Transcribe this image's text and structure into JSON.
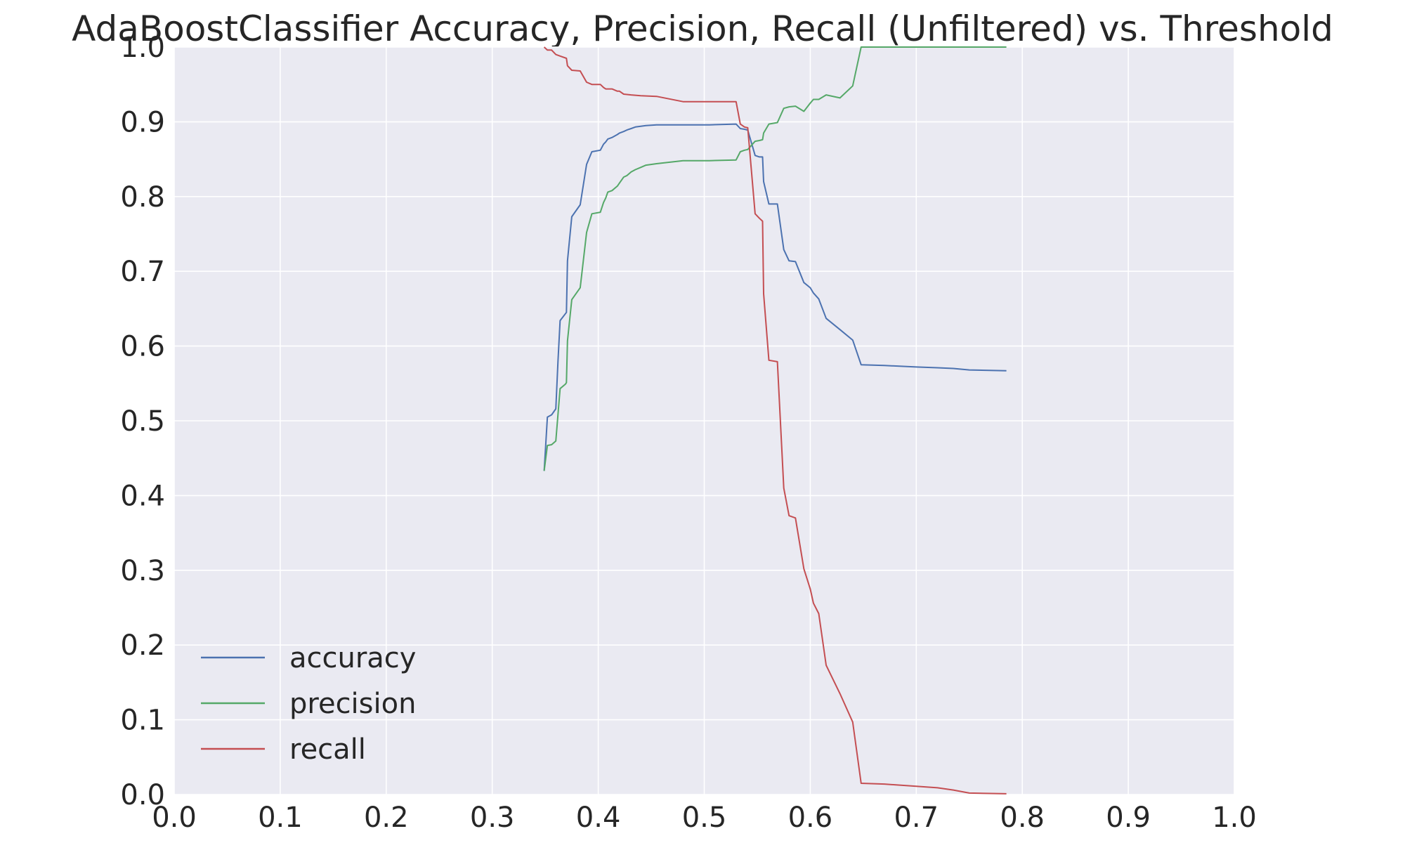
{
  "chart_data": {
    "type": "line",
    "title": "AdaBoostClassifier Accuracy, Precision, Recall (Unfiltered) vs. Threshold",
    "xlabel": "",
    "ylabel": "",
    "xlim": [
      0.0,
      1.0
    ],
    "ylim": [
      0.0,
      1.0
    ],
    "grid": true,
    "legend": "lower-left",
    "x_ticks": [
      "0.0",
      "0.1",
      "0.2",
      "0.3",
      "0.4",
      "0.5",
      "0.6",
      "0.7",
      "0.8",
      "0.9",
      "1.0"
    ],
    "y_ticks": [
      "0.0",
      "0.1",
      "0.2",
      "0.3",
      "0.4",
      "0.5",
      "0.6",
      "0.7",
      "0.8",
      "0.9",
      "1.0"
    ],
    "series": [
      {
        "name": "accuracy",
        "color": "#4c72b0",
        "points": [
          [
            0.349,
            0.433
          ],
          [
            0.352,
            0.505
          ],
          [
            0.356,
            0.508
          ],
          [
            0.36,
            0.516
          ],
          [
            0.362,
            0.58
          ],
          [
            0.364,
            0.634
          ],
          [
            0.37,
            0.645
          ],
          [
            0.371,
            0.714
          ],
          [
            0.375,
            0.773
          ],
          [
            0.383,
            0.789
          ],
          [
            0.389,
            0.843
          ],
          [
            0.394,
            0.86
          ],
          [
            0.402,
            0.862
          ],
          [
            0.405,
            0.87
          ],
          [
            0.407,
            0.873
          ],
          [
            0.409,
            0.877
          ],
          [
            0.413,
            0.879
          ],
          [
            0.418,
            0.883
          ],
          [
            0.42,
            0.885
          ],
          [
            0.424,
            0.887
          ],
          [
            0.427,
            0.889
          ],
          [
            0.431,
            0.891
          ],
          [
            0.435,
            0.893
          ],
          [
            0.44,
            0.894
          ],
          [
            0.445,
            0.895
          ],
          [
            0.455,
            0.896
          ],
          [
            0.48,
            0.896
          ],
          [
            0.505,
            0.896
          ],
          [
            0.53,
            0.897
          ],
          [
            0.534,
            0.891
          ],
          [
            0.538,
            0.89
          ],
          [
            0.541,
            0.889
          ],
          [
            0.548,
            0.855
          ],
          [
            0.552,
            0.853
          ],
          [
            0.555,
            0.853
          ],
          [
            0.556,
            0.82
          ],
          [
            0.561,
            0.79
          ],
          [
            0.569,
            0.79
          ],
          [
            0.575,
            0.729
          ],
          [
            0.58,
            0.714
          ],
          [
            0.586,
            0.713
          ],
          [
            0.594,
            0.685
          ],
          [
            0.6,
            0.678
          ],
          [
            0.603,
            0.671
          ],
          [
            0.608,
            0.663
          ],
          [
            0.615,
            0.637
          ],
          [
            0.628,
            0.622
          ],
          [
            0.64,
            0.608
          ],
          [
            0.648,
            0.575
          ],
          [
            0.67,
            0.574
          ],
          [
            0.7,
            0.572
          ],
          [
            0.72,
            0.571
          ],
          [
            0.735,
            0.57
          ],
          [
            0.75,
            0.568
          ],
          [
            0.785,
            0.567
          ]
        ]
      },
      {
        "name": "precision",
        "color": "#55a868",
        "points": [
          [
            0.349,
            0.433
          ],
          [
            0.352,
            0.467
          ],
          [
            0.356,
            0.468
          ],
          [
            0.36,
            0.473
          ],
          [
            0.364,
            0.543
          ],
          [
            0.369,
            0.549
          ],
          [
            0.37,
            0.551
          ],
          [
            0.371,
            0.607
          ],
          [
            0.375,
            0.662
          ],
          [
            0.383,
            0.678
          ],
          [
            0.389,
            0.752
          ],
          [
            0.394,
            0.777
          ],
          [
            0.402,
            0.779
          ],
          [
            0.405,
            0.792
          ],
          [
            0.407,
            0.798
          ],
          [
            0.409,
            0.806
          ],
          [
            0.413,
            0.808
          ],
          [
            0.418,
            0.814
          ],
          [
            0.42,
            0.818
          ],
          [
            0.424,
            0.826
          ],
          [
            0.427,
            0.828
          ],
          [
            0.431,
            0.833
          ],
          [
            0.435,
            0.836
          ],
          [
            0.44,
            0.839
          ],
          [
            0.445,
            0.842
          ],
          [
            0.455,
            0.844
          ],
          [
            0.48,
            0.848
          ],
          [
            0.505,
            0.848
          ],
          [
            0.53,
            0.849
          ],
          [
            0.534,
            0.86
          ],
          [
            0.538,
            0.862
          ],
          [
            0.541,
            0.863
          ],
          [
            0.548,
            0.874
          ],
          [
            0.552,
            0.875
          ],
          [
            0.555,
            0.876
          ],
          [
            0.556,
            0.885
          ],
          [
            0.561,
            0.897
          ],
          [
            0.569,
            0.899
          ],
          [
            0.575,
            0.918
          ],
          [
            0.58,
            0.92
          ],
          [
            0.586,
            0.921
          ],
          [
            0.594,
            0.914
          ],
          [
            0.6,
            0.925
          ],
          [
            0.603,
            0.93
          ],
          [
            0.608,
            0.93
          ],
          [
            0.615,
            0.936
          ],
          [
            0.628,
            0.932
          ],
          [
            0.64,
            0.948
          ],
          [
            0.648,
            1.0
          ],
          [
            0.67,
            1.0
          ],
          [
            0.7,
            1.0
          ],
          [
            0.72,
            1.0
          ],
          [
            0.735,
            1.0
          ],
          [
            0.75,
            1.0
          ],
          [
            0.785,
            1.0
          ]
        ]
      },
      {
        "name": "recall",
        "color": "#c44e52",
        "points": [
          [
            0.349,
            1.0
          ],
          [
            0.352,
            0.996
          ],
          [
            0.356,
            0.996
          ],
          [
            0.36,
            0.99
          ],
          [
            0.364,
            0.988
          ],
          [
            0.37,
            0.985
          ],
          [
            0.371,
            0.975
          ],
          [
            0.375,
            0.969
          ],
          [
            0.383,
            0.968
          ],
          [
            0.389,
            0.953
          ],
          [
            0.394,
            0.95
          ],
          [
            0.402,
            0.95
          ],
          [
            0.405,
            0.946
          ],
          [
            0.407,
            0.944
          ],
          [
            0.413,
            0.944
          ],
          [
            0.418,
            0.941
          ],
          [
            0.42,
            0.941
          ],
          [
            0.424,
            0.937
          ],
          [
            0.431,
            0.936
          ],
          [
            0.44,
            0.935
          ],
          [
            0.455,
            0.934
          ],
          [
            0.48,
            0.927
          ],
          [
            0.505,
            0.927
          ],
          [
            0.53,
            0.927
          ],
          [
            0.534,
            0.897
          ],
          [
            0.538,
            0.893
          ],
          [
            0.541,
            0.892
          ],
          [
            0.548,
            0.777
          ],
          [
            0.552,
            0.771
          ],
          [
            0.555,
            0.767
          ],
          [
            0.556,
            0.67
          ],
          [
            0.561,
            0.581
          ],
          [
            0.569,
            0.579
          ],
          [
            0.575,
            0.41
          ],
          [
            0.58,
            0.373
          ],
          [
            0.586,
            0.37
          ],
          [
            0.594,
            0.302
          ],
          [
            0.6,
            0.275
          ],
          [
            0.603,
            0.256
          ],
          [
            0.608,
            0.242
          ],
          [
            0.615,
            0.173
          ],
          [
            0.628,
            0.135
          ],
          [
            0.64,
            0.097
          ],
          [
            0.648,
            0.015
          ],
          [
            0.67,
            0.014
          ],
          [
            0.7,
            0.011
          ],
          [
            0.72,
            0.009
          ],
          [
            0.735,
            0.006
          ],
          [
            0.75,
            0.002
          ],
          [
            0.785,
            0.001
          ]
        ]
      }
    ]
  }
}
